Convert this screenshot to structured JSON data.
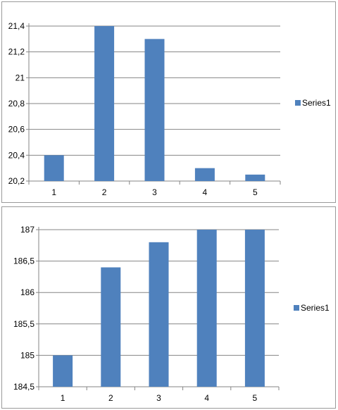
{
  "chart_data": [
    {
      "type": "bar",
      "title": "",
      "xlabel": "",
      "ylabel": "",
      "categories": [
        "1",
        "2",
        "3",
        "4",
        "5"
      ],
      "series": [
        {
          "name": "Series1",
          "values": [
            20.4,
            21.4,
            21.3,
            20.3,
            20.25
          ]
        }
      ],
      "ylim": [
        20.2,
        21.5
      ],
      "yticks": [
        20.2,
        20.4,
        20.6,
        20.8,
        21,
        21.2,
        21.4
      ],
      "ytick_labels": [
        "20,2",
        "20,4",
        "20,6",
        "20,8",
        "21",
        "21,2",
        "21,4"
      ],
      "grid": "horizontal",
      "legend": "right"
    },
    {
      "type": "bar",
      "title": "",
      "xlabel": "",
      "ylabel": "",
      "categories": [
        "1",
        "2",
        "3",
        "4",
        "5"
      ],
      "series": [
        {
          "name": "Series1",
          "values": [
            185,
            186.4,
            186.8,
            187,
            187
          ]
        }
      ],
      "ylim": [
        184.5,
        187
      ],
      "yticks": [
        184.5,
        185,
        185.5,
        186,
        186.5,
        187
      ],
      "ytick_labels": [
        "184,5",
        "185",
        "185,5",
        "186",
        "186,5",
        "187"
      ],
      "grid": "horizontal",
      "legend": "right"
    }
  ],
  "colors": {
    "bar": "#4f81bd",
    "grid": "#868686",
    "axis": "#868686"
  }
}
